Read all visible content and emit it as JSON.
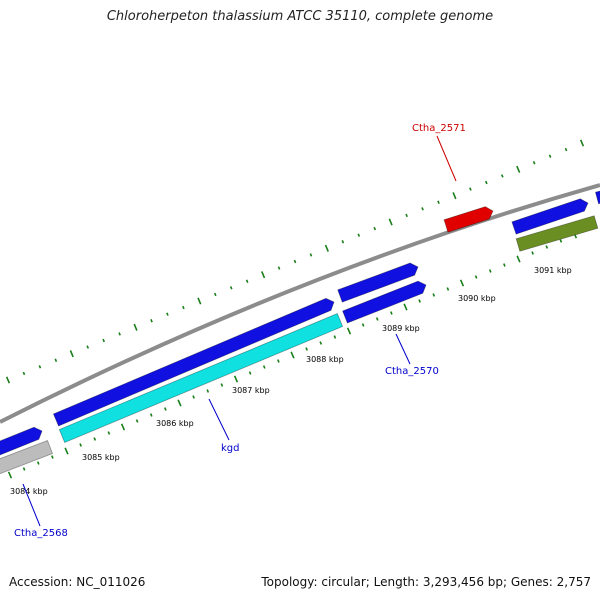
{
  "title": "Chloroherpeton thalassium ATCC 35110, complete genome",
  "footer": {
    "accession": "Accession: NC_011026",
    "summary": "Topology: circular; Length: 3,293,456 bp; Genes: 2,757"
  },
  "colors": {
    "backbone": "#8c8c8c",
    "tick": "#1a7f1a",
    "label_blue": "#0000cc",
    "label_red": "#cc0000"
  },
  "ticks": [
    {
      "label": "3084 kbp"
    },
    {
      "label": "3085 kbp"
    },
    {
      "label": "3086 kbp"
    },
    {
      "label": "3087 kbp"
    },
    {
      "label": "3088 kbp"
    },
    {
      "label": "3089 kbp"
    },
    {
      "label": "3090 kbp"
    },
    {
      "label": "3091 kbp"
    }
  ],
  "features": [
    {
      "name": "gene-blue-1",
      "color": "#1010e0"
    },
    {
      "name": "gene-grey-1",
      "color": "#bcbcbc"
    },
    {
      "name": "gene-blue-2",
      "color": "#1010e0"
    },
    {
      "name": "gene-kgd",
      "color": "#10e0e0"
    },
    {
      "name": "gene-blue-3",
      "color": "#1010e0"
    },
    {
      "name": "gene-ctha-2570",
      "color": "#1010e0"
    },
    {
      "name": "gene-ctha-2571",
      "color": "#e00000"
    },
    {
      "name": "gene-blue-4",
      "color": "#1010e0"
    },
    {
      "name": "gene-olive-1",
      "color": "#6b8e23"
    },
    {
      "name": "gene-blue-5",
      "color": "#1010e0"
    }
  ],
  "gene_labels": [
    {
      "text": "Ctha_2571",
      "color": "#cc0000"
    },
    {
      "text": "Ctha_2570",
      "color": "#0000cc"
    },
    {
      "text": "kgd",
      "color": "#0000cc"
    },
    {
      "text": "Ctha_2568",
      "color": "#0000cc"
    }
  ]
}
